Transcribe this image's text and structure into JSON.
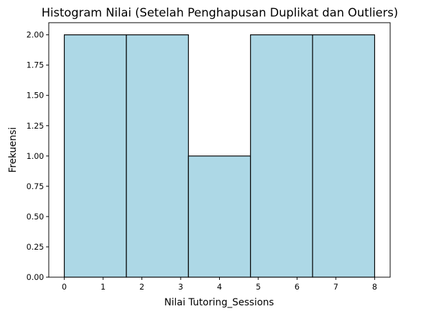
{
  "chart_data": {
    "type": "bar",
    "title": "Histogram Nilai (Setelah Penghapusan Duplikat dan Outliers)",
    "xlabel": "Nilai Tutoring_Sessions",
    "ylabel": "Frekuensi",
    "bins": [
      {
        "start": 0.0,
        "end": 1.6,
        "value": 2
      },
      {
        "start": 1.6,
        "end": 3.2,
        "value": 2
      },
      {
        "start": 3.2,
        "end": 4.8,
        "value": 1
      },
      {
        "start": 4.8,
        "end": 6.4,
        "value": 2
      },
      {
        "start": 6.4,
        "end": 8.0,
        "value": 2
      }
    ],
    "xlim": [
      -0.4,
      8.4
    ],
    "ylim": [
      0,
      2.1
    ],
    "xticks": [
      0,
      1,
      2,
      3,
      4,
      5,
      6,
      7,
      8
    ],
    "xtick_labels": [
      "0",
      "1",
      "2",
      "3",
      "4",
      "5",
      "6",
      "7",
      "8"
    ],
    "yticks": [
      0,
      0.25,
      0.5,
      0.75,
      1.0,
      1.25,
      1.5,
      1.75,
      2.0
    ],
    "ytick_labels": [
      "0.00",
      "0.25",
      "0.50",
      "0.75",
      "1.00",
      "1.25",
      "1.50",
      "1.75",
      "2.00"
    ],
    "grid": false,
    "bar_color": "#add8e6",
    "edge_color": "#000000"
  }
}
